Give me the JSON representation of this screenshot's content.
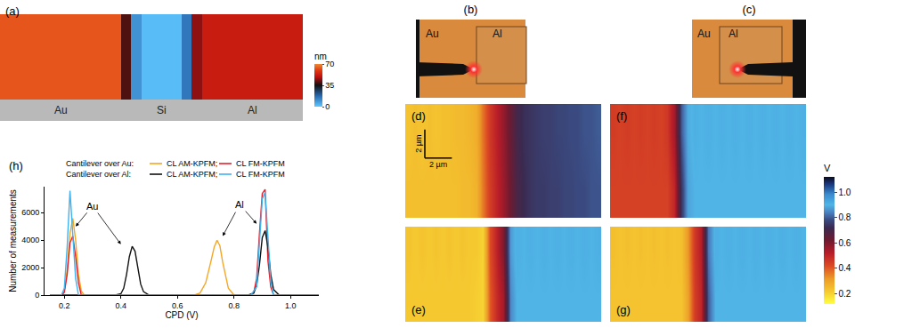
{
  "chart_data": [
    {
      "type": "heatmap",
      "title": "(a)",
      "z": [
        [
          63,
          63,
          63,
          63,
          63,
          63,
          63,
          63,
          63,
          63,
          63,
          63,
          40,
          10,
          2,
          2,
          2,
          2,
          15,
          45,
          52,
          52,
          52,
          52,
          52,
          52,
          52,
          52,
          52,
          52
        ]
      ],
      "colorbar": {
        "title": "nm",
        "range": [
          0,
          70
        ],
        "ticks": [
          0,
          35,
          70
        ]
      },
      "labels": [
        {
          "text": "Au",
          "x": 5.5
        },
        {
          "text": "Si",
          "x": 15.5
        },
        {
          "text": "Al",
          "x": 24.5
        }
      ]
    },
    {
      "type": "photo",
      "title": "(b)",
      "labels": [
        "Au",
        "Al"
      ]
    },
    {
      "type": "photo",
      "title": "(c)",
      "labels": [
        "Au",
        "Al"
      ]
    },
    {
      "type": "heatmap",
      "title": "(d)",
      "x": [
        0,
        0.5,
        1,
        1.5,
        2,
        2.5,
        3,
        3.5,
        4,
        4.5,
        5,
        5.5,
        6,
        6.5,
        7,
        7.5,
        8,
        8.5,
        9,
        9.5,
        10,
        10.5,
        11,
        11.5,
        12,
        12.5,
        13,
        13.5,
        14
      ],
      "y": [
        2,
        6
      ],
      "xlim": [
        -0.25,
        14.25
      ],
      "ylim": [
        0,
        8
      ],
      "z": [
        [
          0.24,
          0.24,
          0.24,
          0.24,
          0.24,
          0.24,
          0.24,
          0.24,
          0.25,
          0.25,
          0.27,
          0.36,
          0.45,
          0.5,
          0.56,
          0.63,
          0.69,
          0.72,
          0.74,
          0.75,
          0.75,
          0.76,
          0.76,
          0.77,
          0.77,
          0.78,
          0.78,
          0.79,
          0.79
        ],
        [
          0.23,
          0.24,
          0.23,
          0.24,
          0.23,
          0.24,
          0.24,
          0.25,
          0.25,
          0.26,
          0.28,
          0.37,
          0.46,
          0.51,
          0.57,
          0.64,
          0.7,
          0.73,
          0.74,
          0.75,
          0.76,
          0.76,
          0.77,
          0.77,
          0.78,
          0.78,
          0.79,
          0.79,
          0.8
        ]
      ],
      "scale_bar": {
        "length": 2,
        "labels": [
          "2 µm",
          "2 µm"
        ]
      }
    },
    {
      "type": "heatmap",
      "title": "(e)",
      "x": [
        0,
        0.5,
        1,
        1.5,
        2,
        2.5,
        3,
        3.5,
        4,
        4.5,
        5,
        5.5,
        6,
        6.5,
        7,
        7.5,
        8,
        8.5,
        9,
        9.5,
        10,
        10.5,
        11,
        11.5,
        12,
        12.5,
        13,
        13.5,
        14
      ],
      "y": [
        1.75,
        5.25
      ],
      "xlim": [
        -0.25,
        14.25
      ],
      "ylim": [
        0,
        7
      ],
      "z": [
        [
          0.22,
          0.22,
          0.22,
          0.22,
          0.22,
          0.22,
          0.22,
          0.22,
          0.22,
          0.22,
          0.21,
          0.2,
          0.4,
          0.48,
          0.55,
          0.85,
          0.9,
          0.9,
          0.9,
          0.9,
          0.9,
          0.9,
          0.9,
          0.9,
          0.9,
          0.9,
          0.9,
          0.9,
          0.9
        ],
        [
          0.23,
          0.22,
          0.23,
          0.22,
          0.23,
          0.22,
          0.23,
          0.22,
          0.23,
          0.22,
          0.22,
          0.2,
          0.42,
          0.5,
          0.6,
          0.87,
          0.91,
          0.9,
          0.91,
          0.9,
          0.91,
          0.9,
          0.91,
          0.9,
          0.91,
          0.9,
          0.91,
          0.9,
          0.91
        ]
      ]
    },
    {
      "type": "heatmap",
      "title": "(f)",
      "x": [
        0,
        0.5,
        1,
        1.5,
        2,
        2.5,
        3,
        3.5,
        4,
        4.5,
        5,
        5.5,
        6,
        6.5,
        7,
        7.5,
        8,
        8.5,
        9,
        9.5,
        10,
        10.5,
        11,
        11.5,
        12,
        12.5,
        13,
        13.5,
        14
      ],
      "y": [
        2,
        6
      ],
      "xlim": [
        -0.25,
        14.25
      ],
      "ylim": [
        0,
        8
      ],
      "z": [
        [
          0.44,
          0.44,
          0.44,
          0.44,
          0.44,
          0.44,
          0.44,
          0.44,
          0.44,
          0.5,
          0.75,
          0.88,
          0.9,
          0.9,
          0.9,
          0.9,
          0.9,
          0.9,
          0.9,
          0.9,
          0.9,
          0.9,
          0.9,
          0.9,
          0.9,
          0.9,
          0.9,
          0.9,
          0.9
        ],
        [
          0.45,
          0.44,
          0.45,
          0.44,
          0.45,
          0.44,
          0.45,
          0.44,
          0.46,
          0.55,
          0.8,
          0.89,
          0.91,
          0.9,
          0.91,
          0.9,
          0.91,
          0.9,
          0.91,
          0.9,
          0.91,
          0.9,
          0.91,
          0.9,
          0.91,
          0.9,
          0.91,
          0.9,
          0.91
        ]
      ],
      "colorbar": {
        "title": "V",
        "range": [
          0.12,
          1.12
        ],
        "ticks": [
          0.2,
          0.4,
          0.6,
          0.8,
          {
            "value": 1,
            "label": "1.0"
          }
        ]
      }
    },
    {
      "type": "heatmap",
      "title": "(g)",
      "x": [
        0,
        0.5,
        1,
        1.5,
        2,
        2.5,
        3,
        3.5,
        4,
        4.5,
        5,
        5.5,
        6,
        6.5,
        7,
        7.5,
        8,
        8.5,
        9,
        9.5,
        10,
        10.5,
        11,
        11.5,
        12,
        12.5,
        13,
        13.5,
        14
      ],
      "y": [
        1.75,
        5.25
      ],
      "xlim": [
        -0.25,
        14.25
      ],
      "ylim": [
        0,
        7
      ],
      "z": [
        [
          0.23,
          0.23,
          0.23,
          0.23,
          0.23,
          0.23,
          0.23,
          0.23,
          0.23,
          0.23,
          0.23,
          0.3,
          0.45,
          0.5,
          0.8,
          0.9,
          0.9,
          0.9,
          0.9,
          0.9,
          0.9,
          0.9,
          0.9,
          0.9,
          0.9,
          0.9,
          0.9,
          0.9,
          0.9
        ],
        [
          0.24,
          0.23,
          0.24,
          0.23,
          0.24,
          0.23,
          0.24,
          0.23,
          0.24,
          0.23,
          0.24,
          0.32,
          0.46,
          0.52,
          0.83,
          0.91,
          0.9,
          0.91,
          0.9,
          0.91,
          0.9,
          0.91,
          0.9,
          0.91,
          0.9,
          0.91,
          0.9,
          0.91,
          0.9
        ]
      ]
    },
    {
      "type": "line",
      "title": "(h)",
      "x_label": "CPD (V)",
      "y_label": "Number of measurements",
      "xlim": [
        0.13,
        1.1
      ],
      "xticks": [
        0.2,
        0.4,
        0.6,
        0.8,
        {
          "value": 1,
          "label": "1.0"
        }
      ],
      "ylim": [
        0,
        7900
      ],
      "yticks": [
        0,
        2000,
        4000,
        6000
      ],
      "series": [
        {
          "name": "CL AM-KPFM;",
          "group": "Cantilever over Au:",
          "color": "#f5a623",
          "x": [
            0.15,
            0.19,
            0.2,
            0.21,
            0.22,
            0.23,
            0.24,
            0.25,
            0.26,
            0.27,
            0.6,
            0.66,
            0.68,
            0.7,
            0.72,
            0.73,
            0.74,
            0.75,
            0.76,
            0.78,
            0.8,
            1.1
          ],
          "values": [
            0,
            0,
            300,
            1800,
            4500,
            5600,
            4000,
            1500,
            300,
            0,
            0,
            0,
            150,
            900,
            2600,
            3500,
            4000,
            3600,
            2400,
            500,
            0,
            0
          ]
        },
        {
          "name": "CL FM-KPFM",
          "group": "Cantilever over Au:",
          "color": "#e8202a",
          "x": [
            0.15,
            0.19,
            0.2,
            0.21,
            0.22,
            0.23,
            0.24,
            0.25,
            0.26,
            0.6,
            0.86,
            0.87,
            0.88,
            0.89,
            0.9,
            0.91,
            0.92,
            0.93,
            0.94,
            1.1
          ],
          "values": [
            0,
            0,
            200,
            1500,
            3800,
            4300,
            2800,
            900,
            0,
            0,
            0,
            200,
            1200,
            4500,
            7400,
            7700,
            2500,
            600,
            0,
            0
          ]
        },
        {
          "name": "CL AM-KPFM;",
          "group": "Cantilever over Al:",
          "color": "#111111",
          "x": [
            0.15,
            0.38,
            0.4,
            0.41,
            0.42,
            0.43,
            0.44,
            0.45,
            0.46,
            0.47,
            0.48,
            0.5,
            0.6,
            0.85,
            0.87,
            0.88,
            0.89,
            0.9,
            0.91,
            0.92,
            0.93,
            0.94,
            0.96,
            1.1
          ],
          "values": [
            0,
            0,
            100,
            500,
            1500,
            2800,
            3550,
            3200,
            2000,
            800,
            250,
            0,
            0,
            0,
            150,
            700,
            2200,
            4200,
            4700,
            3500,
            1500,
            400,
            0,
            0
          ]
        },
        {
          "name": "CL FM-KPFM",
          "group": "Cantilever over Al:",
          "color": "#3fb3f0",
          "x": [
            0.15,
            0.19,
            0.2,
            0.21,
            0.22,
            0.23,
            0.24,
            0.25,
            0.6,
            0.86,
            0.88,
            0.89,
            0.9,
            0.91,
            0.92,
            0.93,
            0.94,
            1.1
          ],
          "values": [
            0,
            0,
            500,
            3500,
            7600,
            4500,
            1200,
            0,
            0,
            0,
            600,
            3500,
            7000,
            7500,
            4000,
            1000,
            0,
            0
          ]
        }
      ],
      "annotations": [
        {
          "text": "Au",
          "x": 0.3,
          "y": 6500,
          "arrows": [
            {
              "x": 0.24,
              "y": 5000
            },
            {
              "x": 0.4,
              "y": 3700
            }
          ]
        },
        {
          "text": "Al",
          "x": 0.82,
          "y": 6600,
          "arrows": [
            {
              "x": 0.76,
              "y": 4300
            },
            {
              "x": 0.88,
              "y": 5200
            }
          ]
        }
      ]
    }
  ]
}
